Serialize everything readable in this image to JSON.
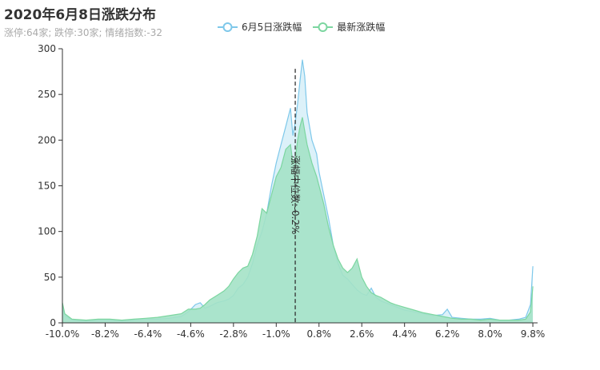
{
  "chart_data": {
    "type": "area",
    "title": "2020年6月8日涨跌分布",
    "subtitle": "涨停:64家; 跌停:30家; 情绪指数:-32",
    "legend_position": "top-center",
    "grid": false,
    "xlim": [
      -10.0,
      10.0
    ],
    "ylim": [
      0,
      300
    ],
    "y_ticks": [
      0,
      50,
      100,
      150,
      200,
      250,
      300
    ],
    "x_tick_labels": [
      "-10.0%",
      "-8.2%",
      "-6.4%",
      "-4.6%",
      "-2.8%",
      "-1.0%",
      "0.8%",
      "2.6%",
      "4.4%",
      "6.2%",
      "8.0%",
      "9.8%"
    ],
    "x_tick_values": [
      -10.0,
      -8.2,
      -6.4,
      -4.6,
      -2.8,
      -1.0,
      0.8,
      2.6,
      4.4,
      6.2,
      8.0,
      9.8
    ],
    "median": {
      "value": -0.2,
      "label": "涨幅中位数:-0.2%"
    },
    "series": [
      {
        "name": "6月5日涨跌幅",
        "line_color": "#7ec8ea",
        "fill_color": "#d6eef8",
        "points": [
          [
            -10.0,
            20
          ],
          [
            -9.9,
            8
          ],
          [
            -9.6,
            3
          ],
          [
            -9.0,
            2
          ],
          [
            -8.5,
            3
          ],
          [
            -8.0,
            3
          ],
          [
            -7.5,
            2
          ],
          [
            -7.0,
            3
          ],
          [
            -6.5,
            4
          ],
          [
            -6.0,
            4
          ],
          [
            -5.5,
            5
          ],
          [
            -5.0,
            7
          ],
          [
            -4.7,
            12
          ],
          [
            -4.4,
            20
          ],
          [
            -4.2,
            22
          ],
          [
            -4.0,
            16
          ],
          [
            -3.8,
            18
          ],
          [
            -3.5,
            22
          ],
          [
            -3.2,
            24
          ],
          [
            -3.0,
            26
          ],
          [
            -2.8,
            30
          ],
          [
            -2.6,
            38
          ],
          [
            -2.4,
            42
          ],
          [
            -2.2,
            50
          ],
          [
            -2.0,
            65
          ],
          [
            -1.8,
            85
          ],
          [
            -1.6,
            100
          ],
          [
            -1.4,
            120
          ],
          [
            -1.2,
            150
          ],
          [
            -1.0,
            175
          ],
          [
            -0.8,
            195
          ],
          [
            -0.6,
            215
          ],
          [
            -0.4,
            235
          ],
          [
            -0.3,
            205
          ],
          [
            -0.2,
            220
          ],
          [
            -0.1,
            240
          ],
          [
            0.0,
            265
          ],
          [
            0.1,
            288
          ],
          [
            0.2,
            270
          ],
          [
            0.3,
            230
          ],
          [
            0.5,
            200
          ],
          [
            0.7,
            185
          ],
          [
            0.8,
            165
          ],
          [
            1.0,
            140
          ],
          [
            1.2,
            115
          ],
          [
            1.4,
            85
          ],
          [
            1.6,
            65
          ],
          [
            1.8,
            52
          ],
          [
            2.0,
            48
          ],
          [
            2.2,
            42
          ],
          [
            2.4,
            36
          ],
          [
            2.6,
            32
          ],
          [
            2.8,
            30
          ],
          [
            3.0,
            38
          ],
          [
            3.2,
            28
          ],
          [
            3.4,
            24
          ],
          [
            3.6,
            22
          ],
          [
            3.8,
            20
          ],
          [
            4.0,
            18
          ],
          [
            4.4,
            14
          ],
          [
            4.8,
            12
          ],
          [
            5.2,
            10
          ],
          [
            5.6,
            8
          ],
          [
            6.0,
            9
          ],
          [
            6.2,
            15
          ],
          [
            6.4,
            6
          ],
          [
            6.8,
            5
          ],
          [
            7.2,
            4
          ],
          [
            7.6,
            4
          ],
          [
            8.0,
            5
          ],
          [
            8.4,
            3
          ],
          [
            8.8,
            3
          ],
          [
            9.2,
            4
          ],
          [
            9.5,
            6
          ],
          [
            9.7,
            20
          ],
          [
            9.8,
            62
          ]
        ]
      },
      {
        "name": "最新涨跌幅",
        "line_color": "#7cd6a0",
        "fill_color": "#a4e2c7",
        "points": [
          [
            -10.0,
            22
          ],
          [
            -9.9,
            10
          ],
          [
            -9.6,
            4
          ],
          [
            -9.0,
            3
          ],
          [
            -8.5,
            4
          ],
          [
            -8.0,
            4
          ],
          [
            -7.5,
            3
          ],
          [
            -7.0,
            4
          ],
          [
            -6.5,
            5
          ],
          [
            -6.0,
            6
          ],
          [
            -5.5,
            8
          ],
          [
            -5.0,
            10
          ],
          [
            -4.7,
            15
          ],
          [
            -4.4,
            15
          ],
          [
            -4.2,
            16
          ],
          [
            -4.0,
            20
          ],
          [
            -3.8,
            25
          ],
          [
            -3.5,
            30
          ],
          [
            -3.2,
            35
          ],
          [
            -3.0,
            40
          ],
          [
            -2.8,
            48
          ],
          [
            -2.6,
            55
          ],
          [
            -2.4,
            60
          ],
          [
            -2.2,
            62
          ],
          [
            -2.0,
            75
          ],
          [
            -1.8,
            95
          ],
          [
            -1.6,
            125
          ],
          [
            -1.4,
            120
          ],
          [
            -1.2,
            140
          ],
          [
            -1.0,
            160
          ],
          [
            -0.8,
            170
          ],
          [
            -0.6,
            190
          ],
          [
            -0.4,
            195
          ],
          [
            -0.3,
            175
          ],
          [
            -0.2,
            180
          ],
          [
            -0.1,
            200
          ],
          [
            0.0,
            215
          ],
          [
            0.1,
            225
          ],
          [
            0.2,
            210
          ],
          [
            0.3,
            195
          ],
          [
            0.5,
            175
          ],
          [
            0.7,
            160
          ],
          [
            0.8,
            150
          ],
          [
            1.0,
            130
          ],
          [
            1.2,
            105
          ],
          [
            1.4,
            85
          ],
          [
            1.6,
            70
          ],
          [
            1.8,
            60
          ],
          [
            2.0,
            55
          ],
          [
            2.2,
            60
          ],
          [
            2.4,
            70
          ],
          [
            2.6,
            50
          ],
          [
            2.8,
            40
          ],
          [
            3.0,
            33
          ],
          [
            3.2,
            30
          ],
          [
            3.4,
            28
          ],
          [
            3.6,
            25
          ],
          [
            3.8,
            22
          ],
          [
            4.0,
            20
          ],
          [
            4.4,
            17
          ],
          [
            4.8,
            14
          ],
          [
            5.2,
            11
          ],
          [
            5.6,
            9
          ],
          [
            6.0,
            7
          ],
          [
            6.2,
            6
          ],
          [
            6.4,
            5
          ],
          [
            6.8,
            4
          ],
          [
            7.2,
            4
          ],
          [
            7.6,
            3
          ],
          [
            8.0,
            4
          ],
          [
            8.4,
            3
          ],
          [
            8.8,
            3
          ],
          [
            9.2,
            3
          ],
          [
            9.5,
            4
          ],
          [
            9.7,
            12
          ],
          [
            9.8,
            40
          ]
        ]
      }
    ]
  }
}
